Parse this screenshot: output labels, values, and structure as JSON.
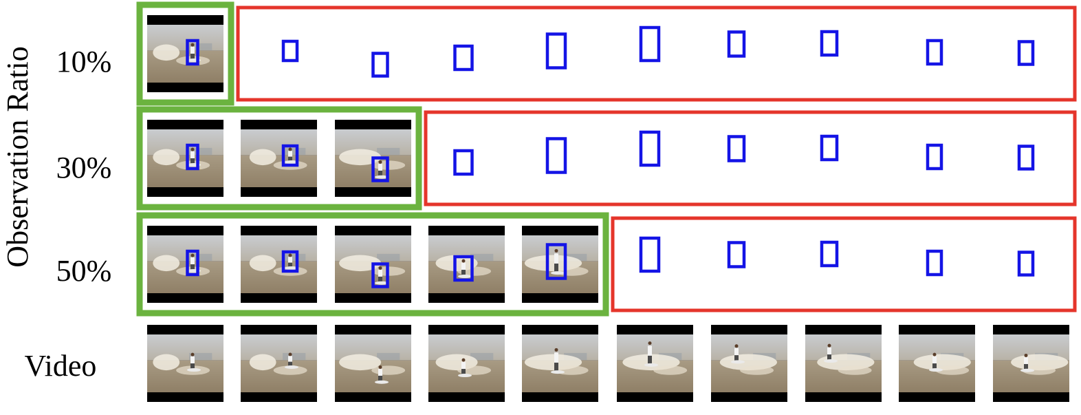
{
  "labels": {
    "y_axis": "Observation Ratio",
    "video_row": "Video"
  },
  "colors": {
    "observed": "#6bb33f",
    "predicted": "#e5352b",
    "box": "#1414e6",
    "frame_bar": "#000000"
  },
  "frame_count": 10,
  "observations": [
    {
      "ratio_label": "10%",
      "observed_frames": 1
    },
    {
      "ratio_label": "30%",
      "observed_frames": 3
    },
    {
      "ratio_label": "50%",
      "observed_frames": 5
    }
  ],
  "frames": [
    {
      "scene": "surfer-small"
    },
    {
      "scene": "surfer-small"
    },
    {
      "scene": "surfer-wave"
    },
    {
      "scene": "surfer-fall"
    },
    {
      "scene": "surfer-turn"
    },
    {
      "scene": "surfer-jump"
    },
    {
      "scene": "surfer-spray"
    },
    {
      "scene": "surfer-spray"
    },
    {
      "scene": "surfer-ride"
    },
    {
      "scene": "surfer-ride"
    }
  ]
}
